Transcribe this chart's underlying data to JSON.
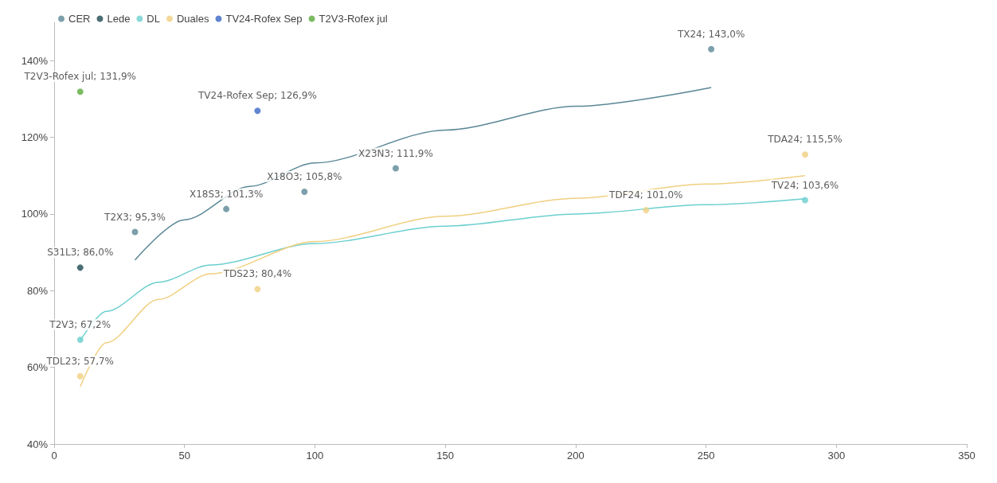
{
  "chart_data": {
    "type": "scatter",
    "legend": "top left",
    "grid": false,
    "marker": "circle",
    "xlim": [
      0,
      350
    ],
    "xticks": [
      0,
      50,
      100,
      150,
      200,
      250,
      300,
      350
    ],
    "ylim": [
      40,
      150
    ],
    "yticks": [
      {
        "value": 40,
        "label": "40%"
      },
      {
        "value": 60,
        "label": "60%"
      },
      {
        "value": 80,
        "label": "80%"
      },
      {
        "value": 100,
        "label": "100%"
      },
      {
        "value": 120,
        "label": "120%"
      },
      {
        "value": 140,
        "label": "140%"
      }
    ],
    "series": [
      {
        "name": "CER",
        "color": "#5a8796",
        "x": [
          31,
          66,
          96,
          131,
          252
        ],
        "values": [
          95.3,
          101.3,
          105.8,
          111.9,
          143.0
        ],
        "value_labels": [
          "T2X3; 95,3%",
          "X18S3; 101,3%",
          "X18O3; 105,8%",
          "X23N3; 111,9%",
          "TX24; 143,0%"
        ]
      },
      {
        "name": "Lede",
        "color": "#1d4a50",
        "x": [
          10
        ],
        "values": [
          86.0
        ],
        "value_labels": [
          "S31L3; 86,0%"
        ]
      },
      {
        "name": "DL",
        "color": "#6ccfcf",
        "x": [
          10,
          288
        ],
        "values": [
          67.2,
          103.6
        ],
        "value_labels": [
          "T2V3; 67,2%",
          "TV24; 103,6%"
        ]
      },
      {
        "name": "Duales",
        "color": "#f0d080",
        "x": [
          10,
          78,
          227,
          288
        ],
        "values": [
          57.7,
          80.4,
          101.0,
          115.5
        ],
        "value_labels": [
          "TDL23; 57,7%",
          "TDS23; 80,4%",
          "TDF24; 101,0%",
          "TDA24; 115,5%"
        ]
      },
      {
        "name": "TV24-Rofex Sep",
        "color": "#3a66c4",
        "x": [
          78
        ],
        "values": [
          126.9
        ],
        "value_labels": [
          "TV24-Rofex Sep; 126,9%"
        ]
      },
      {
        "name": "T2V3-Rofex jul",
        "color": "#5aaa3a",
        "x": [
          10
        ],
        "values": [
          131.9
        ],
        "value_labels": [
          "T2V3-Rofex jul; 131,9%"
        ]
      },
      {
        "type": "line",
        "marker": "none",
        "color": "#5a8796",
        "x": [
          31,
          50,
          75,
          100,
          150,
          200,
          252
        ],
        "values": [
          88,
          98.5,
          107.2,
          113.3,
          121.9,
          128.1,
          133
        ]
      },
      {
        "type": "line",
        "marker": "none",
        "color": "#6ccfcf",
        "x": [
          10,
          20,
          40,
          60,
          100,
          150,
          200,
          250,
          288
        ],
        "values": [
          67,
          74.6,
          82.2,
          86.7,
          92.3,
          96.8,
          100,
          102.4,
          104
        ]
      },
      {
        "type": "line",
        "marker": "none",
        "color": "#f0d080",
        "x": [
          10,
          20,
          40,
          60,
          100,
          150,
          200,
          250,
          288
        ],
        "values": [
          55,
          66.4,
          77.7,
          84.4,
          92.8,
          99.4,
          104.1,
          107.8,
          110
        ]
      }
    ]
  }
}
